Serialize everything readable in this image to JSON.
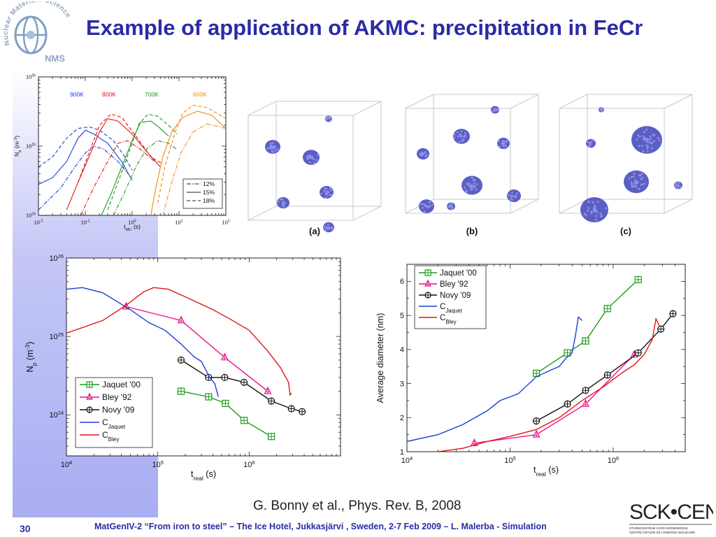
{
  "slide": {
    "title": "Example of application of AKMC: precipitation in FeCr",
    "citation": "G. Bonny et al., Phys. Rev. B, 2008",
    "footer": "MatGenIV-2 “From iron to steel” – The Ice Hotel, Jukkasjärvi , Sweden, 2-7 Feb 2009 – L. Malerba - Simulation",
    "page_number": "30",
    "logo_left": {
      "text_arc": "Nuclear Materials Science",
      "abbr": "NMS"
    },
    "logo_right": {
      "name": "SCK•CEN",
      "line1": "STUDIECENTRUM VOOR KERNENERGIE",
      "line2": "CENTRE D'ÉTUDE DE L'ENERGIE NUCLÉAIRE"
    }
  },
  "snapshots": {
    "labels": [
      "(a)",
      "(b)",
      "(c)"
    ]
  },
  "chart_data": [
    {
      "type": "line",
      "xlabel": "t_MC (s)",
      "ylabel": "N_p (m^-3)",
      "xscale": "log",
      "yscale": "log",
      "xlim": [
        0.01,
        100
      ],
      "ylim": [
        1e+24,
        1e+26
      ],
      "x_tick_labels": [
        "10^-2",
        "10^-1",
        "10^0",
        "10^1",
        "10^2"
      ],
      "y_tick_labels": [
        "10^24",
        "10^25",
        "10^26"
      ],
      "temperature_labels": [
        {
          "text": "900K",
          "color": "#1a3fd6"
        },
        {
          "text": "800K",
          "color": "#e01515"
        },
        {
          "text": "700K",
          "color": "#1c9a1c"
        },
        {
          "text": "600K",
          "color": "#f28a0c"
        }
      ],
      "legend": [
        {
          "name": "12%",
          "style": "dash-dot"
        },
        {
          "name": "15%",
          "style": "solid"
        },
        {
          "name": "18%",
          "style": "dashed"
        }
      ],
      "legend_position": "lower-right",
      "series": [
        {
          "color": "#1a3fd6",
          "style": "solid",
          "points": [
            [
              0.01,
              2.8e+24
            ],
            [
              0.02,
              3.5e+24
            ],
            [
              0.04,
              6e+24
            ],
            [
              0.07,
              1.3e+25
            ],
            [
              0.1,
              1.7e+25
            ],
            [
              0.15,
              1.5e+25
            ],
            [
              0.3,
              1.1e+25
            ],
            [
              0.6,
              6e+24
            ],
            [
              1.0,
              3.2e+24
            ]
          ]
        },
        {
          "color": "#1a3fd6",
          "style": "dashed",
          "points": [
            [
              0.01,
              5e+24
            ],
            [
              0.02,
              7e+24
            ],
            [
              0.04,
              1.3e+25
            ],
            [
              0.07,
              1.8e+25
            ],
            [
              0.12,
              1.9e+25
            ],
            [
              0.2,
              1.7e+25
            ],
            [
              0.4,
              1.2e+25
            ],
            [
              0.7,
              7e+24
            ],
            [
              1.0,
              4.5e+24
            ]
          ]
        },
        {
          "color": "#1a3fd6",
          "style": "dash-dot",
          "points": [
            [
              0.01,
              1.2e+24
            ],
            [
              0.03,
              2.5e+24
            ],
            [
              0.06,
              5e+24
            ],
            [
              0.1,
              8e+24
            ],
            [
              0.15,
              1e+25
            ],
            [
              0.25,
              9e+24
            ],
            [
              0.5,
              6e+24
            ],
            [
              0.8,
              4e+24
            ]
          ]
        },
        {
          "color": "#e01515",
          "style": "solid",
          "points": [
            [
              0.04,
              1.2e+24
            ],
            [
              0.07,
              3e+24
            ],
            [
              0.12,
              7e+24
            ],
            [
              0.2,
              1.6e+25
            ],
            [
              0.3,
              2.5e+25
            ],
            [
              0.5,
              2.3e+25
            ],
            [
              1.0,
              1.5e+25
            ],
            [
              2.0,
              8.5e+24
            ],
            [
              4.0,
              5e+24
            ]
          ]
        },
        {
          "color": "#e01515",
          "style": "dashed",
          "points": [
            [
              0.07,
              3e+24
            ],
            [
              0.12,
              8e+24
            ],
            [
              0.2,
              2e+25
            ],
            [
              0.35,
              2.9e+25
            ],
            [
              0.6,
              2.6e+25
            ],
            [
              1.2,
              1.4e+25
            ],
            [
              2.5,
              7e+24
            ],
            [
              4.5,
              5.5e+24
            ]
          ]
        },
        {
          "color": "#e01515",
          "style": "dash-dot",
          "points": [
            [
              0.08,
              1e+24
            ],
            [
              0.15,
              2.5e+24
            ],
            [
              0.3,
              6e+24
            ],
            [
              0.5,
              1.1e+25
            ],
            [
              0.8,
              1.2e+25
            ],
            [
              1.5,
              9e+24
            ],
            [
              3.0,
              6e+24
            ]
          ]
        },
        {
          "color": "#1c9a1c",
          "style": "solid",
          "points": [
            [
              0.22,
              1e+24
            ],
            [
              0.35,
              2e+24
            ],
            [
              0.6,
              5e+24
            ],
            [
              1.0,
              1.2e+25
            ],
            [
              1.5,
              2.2e+25
            ],
            [
              2.5,
              2.3e+25
            ],
            [
              4.0,
              1.8e+25
            ],
            [
              6.0,
              1.4e+25
            ]
          ]
        },
        {
          "color": "#1c9a1c",
          "style": "dashed",
          "points": [
            [
              0.3,
              1.2e+24
            ],
            [
              0.5,
              3e+24
            ],
            [
              0.9,
              9e+24
            ],
            [
              1.4,
              2.1e+25
            ],
            [
              2.2,
              2.9e+25
            ],
            [
              3.5,
              2.7e+25
            ],
            [
              6.0,
              2e+25
            ],
            [
              9.0,
              1.5e+25
            ]
          ]
        },
        {
          "color": "#1c9a1c",
          "style": "dash-dot",
          "points": [
            [
              0.4,
              1e+24
            ],
            [
              0.7,
              2.2e+24
            ],
            [
              1.2,
              5e+24
            ],
            [
              2.0,
              9e+24
            ],
            [
              3.5,
              1.2e+25
            ],
            [
              6.0,
              1.1e+25
            ],
            [
              9.0,
              9e+24
            ]
          ]
        },
        {
          "color": "#f28a0c",
          "style": "solid",
          "points": [
            [
              2.5,
              1e+24
            ],
            [
              3.2,
              2.5e+24
            ],
            [
              4.5,
              7e+24
            ],
            [
              7.0,
              1.6e+25
            ],
            [
              12.0,
              2.6e+25
            ],
            [
              25.0,
              3.2e+25
            ],
            [
              50.0,
              2.8e+25
            ],
            [
              100.0,
              1.8e+25
            ]
          ]
        },
        {
          "color": "#f28a0c",
          "style": "dashed",
          "points": [
            [
              3.5,
              1.5e+24
            ],
            [
              5.0,
              5e+24
            ],
            [
              8.0,
              1.5e+25
            ],
            [
              12.0,
              3e+25
            ],
            [
              20.0,
              3.9e+25
            ],
            [
              40.0,
              3.6e+25
            ],
            [
              100.0,
              2.5e+25
            ]
          ]
        },
        {
          "color": "#f28a0c",
          "style": "dash-dot",
          "points": [
            [
              4.5,
              1e+24
            ],
            [
              7.0,
              3e+24
            ],
            [
              11.0,
              8e+24
            ],
            [
              20.0,
              1.6e+25
            ],
            [
              40.0,
              2.1e+25
            ],
            [
              100.0,
              1.8e+25
            ]
          ]
        }
      ]
    },
    {
      "type": "line",
      "xlabel": "t_real (s)",
      "ylabel": "N_p (m^-3)",
      "xscale": "log",
      "yscale": "log",
      "xlim": [
        10000.0,
        10000000.0
      ],
      "ylim": [
        3e+23,
        1e+26
      ],
      "x_tick_labels": [
        "10^4",
        "10^5",
        "10^6"
      ],
      "y_tick_labels": [
        "10^24",
        "10^25",
        "10^26"
      ],
      "legend_position": "lower-left",
      "series": [
        {
          "name": "Jaquet '00",
          "color": "#1c9a1c",
          "marker": "boxplus",
          "points": [
            [
              180000.0,
              2e+24
            ],
            [
              360000.0,
              1.7e+24
            ],
            [
              550000.0,
              1.4e+24
            ],
            [
              880000.0,
              8.5e+23
            ],
            [
              1750000.0,
              5.3e+23
            ]
          ]
        },
        {
          "name": "Bley '92",
          "color": "#e8148c",
          "marker": "triangle",
          "points": [
            [
              45000.0,
              2.4e+25
            ],
            [
              180000.0,
              1.6e+25
            ],
            [
              540000.0,
              5.4e+24
            ],
            [
              1600000.0,
              2e+24
            ]
          ]
        },
        {
          "name": "Novy '09",
          "color": "#111111",
          "marker": "circleplus",
          "points": [
            [
              180000.0,
              5e+24
            ],
            [
              360000.0,
              3e+24
            ],
            [
              540000.0,
              3e+24
            ],
            [
              880000.0,
              2.6e+24
            ],
            [
              1750000.0,
              1.5e+24
            ],
            [
              2900000.0,
              1.2e+24
            ],
            [
              3800000.0,
              1.1e+24
            ]
          ]
        },
        {
          "name": "C_Jaquet",
          "color": "#1a3fd6",
          "marker": "none",
          "points": [
            [
              10000.0,
              4e+25
            ],
            [
              15000.0,
              4.2e+25
            ],
            [
              25000.0,
              3.6e+25
            ],
            [
              50000.0,
              2.2e+25
            ],
            [
              80000.0,
              1.5e+25
            ],
            [
              120000.0,
              1.2e+25
            ],
            [
              180000.0,
              8e+24
            ],
            [
              250000.0,
              5.5e+24
            ],
            [
              300000.0,
              4.8e+24
            ],
            [
              370000.0,
              3e+24
            ],
            [
              420000.0,
              2.5e+24
            ],
            [
              460000.0,
              1.7e+24
            ]
          ]
        },
        {
          "name": "C_Bley",
          "color": "#e01515",
          "marker": "none",
          "points": [
            [
              10000.0,
              1.1e+25
            ],
            [
              25000.0,
              1.6e+25
            ],
            [
              45000.0,
              2.5e+25
            ],
            [
              70000.0,
              3.7e+25
            ],
            [
              90000.0,
              4.2e+25
            ],
            [
              130000.0,
              4e+25
            ],
            [
              200000.0,
              3.2e+25
            ],
            [
              400000.0,
              2.2e+25
            ],
            [
              600000.0,
              1.7e+25
            ],
            [
              1000000.0,
              1.2e+25
            ],
            [
              1600000.0,
              6.5e+24
            ],
            [
              2200000.0,
              4e+24
            ],
            [
              2700000.0,
              2.6e+24
            ],
            [
              2800000.0,
              1.8e+24
            ],
            [
              2900000.0,
              1.9e+24
            ]
          ]
        }
      ]
    },
    {
      "type": "line",
      "xlabel": "t_real (s)",
      "ylabel": "Average diameter (nm)",
      "xscale": "log",
      "yscale": "linear",
      "xlim": [
        10000.0,
        5000000.0
      ],
      "ylim": [
        1,
        6.5
      ],
      "x_tick_labels": [
        "10^4",
        "10^5",
        "10^6"
      ],
      "y_tick_labels": [
        "1",
        "2",
        "3",
        "4",
        "5",
        "6"
      ],
      "legend_position": "top-left",
      "series": [
        {
          "name": "Jaquet '00",
          "color": "#1c9a1c",
          "marker": "boxplus",
          "points": [
            [
              180000.0,
              3.3
            ],
            [
              360000.0,
              3.9
            ],
            [
              540000.0,
              4.25
            ],
            [
              880000.0,
              5.2
            ],
            [
              1750000.0,
              6.05
            ]
          ]
        },
        {
          "name": "Bley '92",
          "color": "#e8148c",
          "marker": "triangle",
          "points": [
            [
              45000.0,
              1.25
            ],
            [
              180000.0,
              1.5
            ],
            [
              540000.0,
              2.4
            ],
            [
              1600000.0,
              3.85
            ]
          ]
        },
        {
          "name": "Novy '09",
          "color": "#111111",
          "marker": "circleplus",
          "points": [
            [
              180000.0,
              1.9
            ],
            [
              360000.0,
              2.4
            ],
            [
              540000.0,
              2.8
            ],
            [
              880000.0,
              3.25
            ],
            [
              1750000.0,
              3.9
            ],
            [
              2900000.0,
              4.6
            ],
            [
              3800000.0,
              5.05
            ]
          ]
        },
        {
          "name": "C_Jaquet",
          "color": "#1a3fd6",
          "marker": "none",
          "points": [
            [
              10000.0,
              1.3
            ],
            [
              20000.0,
              1.5
            ],
            [
              35000.0,
              1.8
            ],
            [
              60000.0,
              2.2
            ],
            [
              80000.0,
              2.5
            ],
            [
              120000.0,
              2.7
            ],
            [
              180000.0,
              3.2
            ],
            [
              250000.0,
              3.4
            ],
            [
              300000.0,
              3.5
            ],
            [
              350000.0,
              3.75
            ],
            [
              400000.0,
              3.9
            ],
            [
              430000.0,
              4.4
            ],
            [
              460000.0,
              4.95
            ],
            [
              500000.0,
              4.85
            ]
          ]
        },
        {
          "name": "C_Bley",
          "color": "#e01515",
          "marker": "none",
          "points": [
            [
              20000.0,
              1.0
            ],
            [
              35000.0,
              1.1
            ],
            [
              60000.0,
              1.3
            ],
            [
              100000.0,
              1.45
            ],
            [
              180000.0,
              1.65
            ],
            [
              300000.0,
              2.0
            ],
            [
              500000.0,
              2.5
            ],
            [
              800000.0,
              2.9
            ],
            [
              1200000.0,
              3.3
            ],
            [
              1600000.0,
              3.55
            ],
            [
              2000000.0,
              3.85
            ],
            [
              2400000.0,
              4.3
            ],
            [
              2600000.0,
              4.9
            ],
            [
              2800000.0,
              4.7
            ]
          ]
        }
      ]
    }
  ]
}
